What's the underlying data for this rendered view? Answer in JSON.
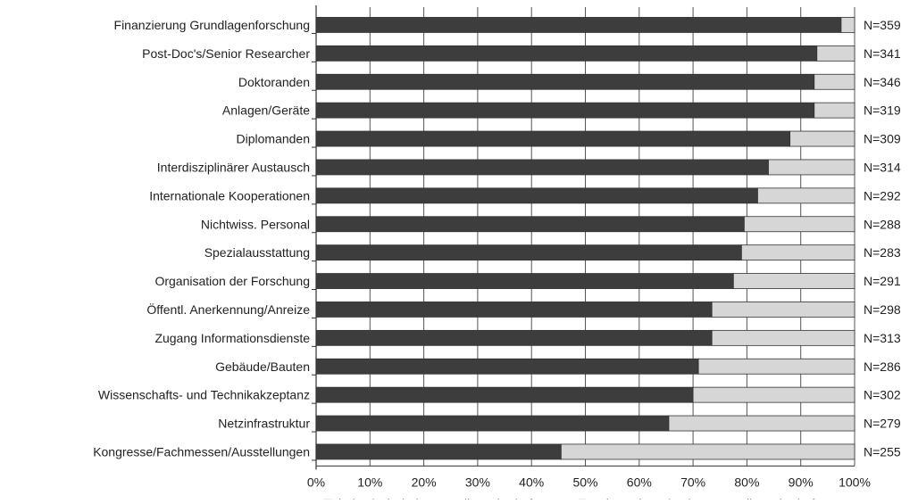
{
  "chart_data": {
    "type": "bar",
    "orientation": "horizontal",
    "stacked": true,
    "percent": true,
    "categories": [
      "Finanzierung Grundlagenforschung",
      "Post-Doc's/Senior Researcher",
      "Doktoranden",
      "Anlagen/Geräte",
      "Diplomanden",
      "Interdisziplinärer Austausch",
      "Internationale Kooperationen",
      "Nichtwiss. Personal",
      "Spezialausstattung",
      "Organisation der Forschung",
      "Öffentl. Anerkennung/Anreize",
      "Zugang Informationsdienste",
      "Gebäude/Bauten",
      "Wissenschafts- und Technikakzeptanz",
      "Netzinfrastruktur",
      "Kongresse/Fachmessen/Ausstellungen"
    ],
    "n_labels": [
      "N=359",
      "N=341",
      "N=346",
      "N=319",
      "N=309",
      "N=314",
      "N=292",
      "N=288",
      "N=283",
      "N=291",
      "N=298",
      "N=313",
      "N=286",
      "N=302",
      "N=279",
      "N=255"
    ],
    "series": [
      {
        "name": "hoher/sehr hoher Handlungsbedarf",
        "color": "#3d3d3d",
        "values": [
          97.5,
          93,
          92.5,
          92.5,
          88,
          84,
          82,
          79.5,
          79,
          77.5,
          73.5,
          73.5,
          71,
          70,
          65.5,
          45.5
        ]
      },
      {
        "name": "sehr geringer/geringer Handlungsbedarf",
        "color": "#d6d6d6",
        "values": [
          2.5,
          7,
          7.5,
          7.5,
          12,
          16,
          18,
          20.5,
          21,
          22.5,
          26.5,
          26.5,
          29,
          30,
          34.5,
          54.5
        ]
      }
    ],
    "xlim": [
      0,
      100
    ],
    "x_ticks": [
      "0%",
      "10%",
      "20%",
      "30%",
      "40%",
      "50%",
      "60%",
      "70%",
      "80%",
      "90%",
      "100%"
    ],
    "grid": true,
    "legend_position": "bottom"
  }
}
